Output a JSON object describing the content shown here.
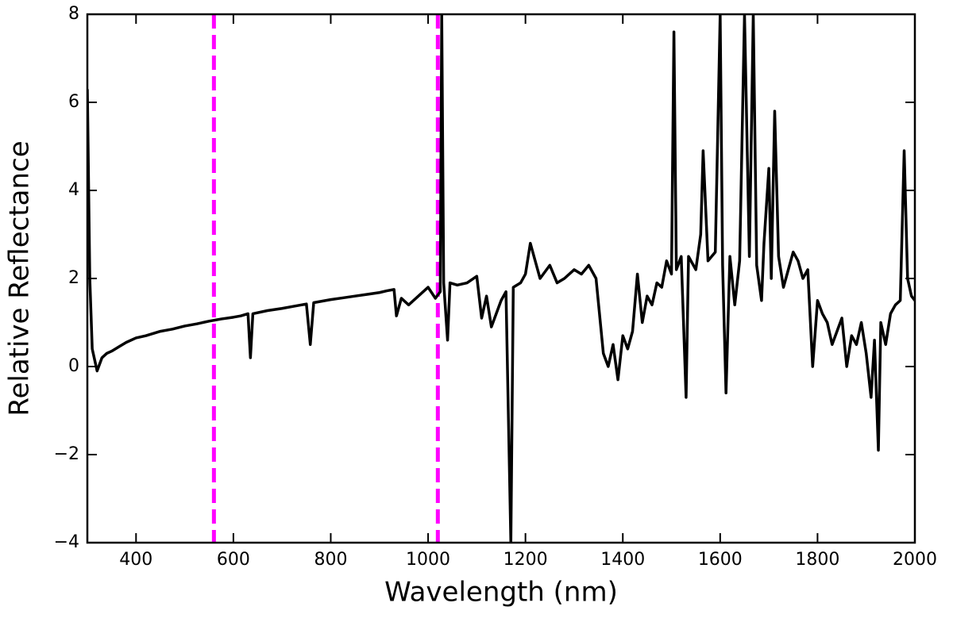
{
  "chart_data": {
    "type": "line",
    "xlabel": "Wavelength (nm)",
    "ylabel": "Relative Reflectance",
    "xlim": [
      300,
      2000
    ],
    "ylim": [
      -4,
      8
    ],
    "xticks": [
      400,
      600,
      800,
      1000,
      1200,
      1400,
      1600,
      1800,
      2000
    ],
    "yticks": [
      {
        "value": -4,
        "label": "−4"
      },
      {
        "value": -2,
        "label": "−2"
      },
      0,
      2,
      4,
      6,
      8
    ],
    "vlines": [
      {
        "value": 560,
        "color": "#ff00ff"
      },
      {
        "value": 1020,
        "color": "#ff00ff"
      }
    ],
    "x": [
      300,
      305,
      310,
      320,
      330,
      340,
      350,
      365,
      380,
      400,
      420,
      450,
      475,
      500,
      525,
      550,
      575,
      600,
      615,
      630,
      635,
      640,
      670,
      700,
      725,
      750,
      758,
      765,
      800,
      825,
      850,
      875,
      900,
      915,
      930,
      935,
      945,
      960,
      980,
      1000,
      1015,
      1025,
      1028,
      1032,
      1040,
      1045,
      1060,
      1080,
      1100,
      1110,
      1120,
      1130,
      1140,
      1150,
      1160,
      1170,
      1175,
      1190,
      1200,
      1210,
      1220,
      1230,
      1250,
      1265,
      1280,
      1300,
      1315,
      1330,
      1345,
      1360,
      1370,
      1380,
      1390,
      1400,
      1410,
      1420,
      1430,
      1440,
      1450,
      1460,
      1470,
      1480,
      1490,
      1500,
      1505,
      1510,
      1520,
      1530,
      1535,
      1550,
      1560,
      1565,
      1575,
      1590,
      1600,
      1605,
      1612,
      1620,
      1630,
      1640,
      1650,
      1660,
      1668,
      1675,
      1685,
      1690,
      1700,
      1705,
      1712,
      1720,
      1730,
      1740,
      1750,
      1760,
      1770,
      1780,
      1790,
      1800,
      1810,
      1820,
      1830,
      1840,
      1850,
      1860,
      1870,
      1880,
      1890,
      1900,
      1910,
      1917,
      1925,
      1930,
      1940,
      1950,
      1960,
      1970,
      1978,
      1985,
      1993,
      2000
    ],
    "series": [
      {
        "color": "#000000",
        "values": [
          6.3,
          2.0,
          0.4,
          -0.1,
          0.2,
          0.3,
          0.35,
          0.45,
          0.55,
          0.65,
          0.7,
          0.8,
          0.85,
          0.92,
          0.97,
          1.03,
          1.08,
          1.12,
          1.15,
          1.2,
          0.2,
          1.2,
          1.27,
          1.32,
          1.37,
          1.42,
          0.5,
          1.45,
          1.52,
          1.56,
          1.6,
          1.64,
          1.68,
          1.72,
          1.75,
          1.15,
          1.55,
          1.4,
          1.6,
          1.8,
          1.55,
          1.7,
          8,
          1.9,
          0.6,
          1.9,
          1.85,
          1.9,
          2.05,
          1.1,
          1.6,
          0.9,
          1.2,
          1.5,
          1.7,
          -4,
          1.8,
          1.9,
          2.1,
          2.8,
          2.4,
          2.0,
          2.3,
          1.9,
          2.0,
          2.2,
          2.1,
          2.3,
          2.0,
          0.3,
          0.0,
          0.5,
          -0.3,
          0.7,
          0.4,
          0.8,
          2.1,
          1.0,
          1.6,
          1.4,
          1.9,
          1.8,
          2.4,
          2.1,
          7.6,
          2.2,
          2.5,
          -0.7,
          2.5,
          2.2,
          3.0,
          4.9,
          2.4,
          2.6,
          8,
          2.3,
          -0.6,
          2.5,
          1.4,
          2.4,
          8,
          2.5,
          8,
          2.3,
          1.5,
          2.8,
          4.5,
          2.0,
          5.8,
          2.5,
          1.8,
          2.2,
          2.6,
          2.4,
          2.0,
          2.2,
          0.0,
          1.5,
          1.2,
          1.0,
          0.5,
          0.8,
          1.1,
          0.0,
          0.7,
          0.5,
          1.0,
          0.3,
          -0.7,
          0.6,
          -1.9,
          1.0,
          0.5,
          1.2,
          1.4,
          1.5,
          4.9,
          2.0,
          1.6,
          1.5
        ]
      }
    ]
  }
}
